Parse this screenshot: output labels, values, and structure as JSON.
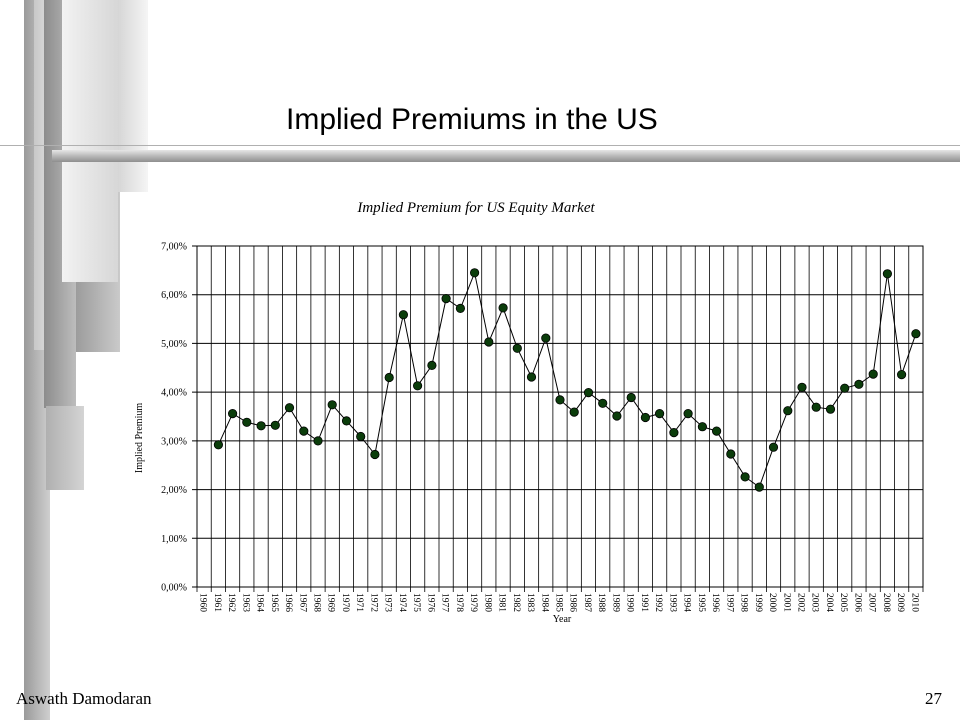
{
  "slide": {
    "title": "Implied Premiums in the US",
    "author": "Aswath Damodaran",
    "page_number": "27"
  },
  "chart_data": {
    "type": "line",
    "title": "Implied Premium for US Equity Market",
    "xlabel": "Year",
    "ylabel": "Implied Premium",
    "ylim": [
      0,
      0.07
    ],
    "y_ticks": [
      0,
      0.01,
      0.02,
      0.03,
      0.04,
      0.05,
      0.06,
      0.07
    ],
    "y_tick_labels": [
      "0,00%",
      "1,00%",
      "2,00%",
      "3,00%",
      "4,00%",
      "5,00%",
      "6,00%",
      "7,00%"
    ],
    "grid": true,
    "categories": [
      "1960",
      "1961",
      "1962",
      "1963",
      "1964",
      "1965",
      "1966",
      "1967",
      "1968",
      "1969",
      "1970",
      "1971",
      "1972",
      "1973",
      "1974",
      "1975",
      "1976",
      "1977",
      "1978",
      "1979",
      "1980",
      "1981",
      "1982",
      "1983",
      "1984",
      "1985",
      "1986",
      "1987",
      "1988",
      "1989",
      "1990",
      "1991",
      "1992",
      "1993",
      "1994",
      "1995",
      "1996",
      "1997",
      "1998",
      "1999",
      "2000",
      "2001",
      "2002",
      "2003",
      "2004",
      "2005",
      "2006",
      "2007",
      "2008",
      "2009",
      "2010"
    ],
    "series": [
      {
        "name": "",
        "x": [
          "1961",
          "1962",
          "1963",
          "1964",
          "1965",
          "1966",
          "1967",
          "1968",
          "1969",
          "1970",
          "1971",
          "1972",
          "1973",
          "1974",
          "1975",
          "1976",
          "1977",
          "1978",
          "1979",
          "1980",
          "1981",
          "1982",
          "1983",
          "1984",
          "1985",
          "1986",
          "1987",
          "1988",
          "1989",
          "1990",
          "1991",
          "1992",
          "1993",
          "1994",
          "1995",
          "1996",
          "1997",
          "1998",
          "1999",
          "2000",
          "2001",
          "2002",
          "2003",
          "2004",
          "2005",
          "2006",
          "2007",
          "2008",
          "2009",
          "2010"
        ],
        "values": [
          0.0292,
          0.0356,
          0.0338,
          0.0331,
          0.0332,
          0.0368,
          0.032,
          0.03,
          0.0374,
          0.0341,
          0.0309,
          0.0272,
          0.043,
          0.0559,
          0.0413,
          0.0455,
          0.0592,
          0.0572,
          0.0645,
          0.0503,
          0.0573,
          0.049,
          0.0431,
          0.0511,
          0.0384,
          0.0359,
          0.0399,
          0.0377,
          0.0351,
          0.0389,
          0.0348,
          0.0356,
          0.0317,
          0.0356,
          0.0329,
          0.032,
          0.0273,
          0.0226,
          0.0205,
          0.0287,
          0.0362,
          0.041,
          0.0369,
          0.0365,
          0.0408,
          0.0416,
          0.0437,
          0.0643,
          0.0436,
          0.052
        ]
      }
    ],
    "colors": {
      "marker": "#0b3d0b",
      "line": "#000000",
      "grid": "#000000"
    }
  }
}
